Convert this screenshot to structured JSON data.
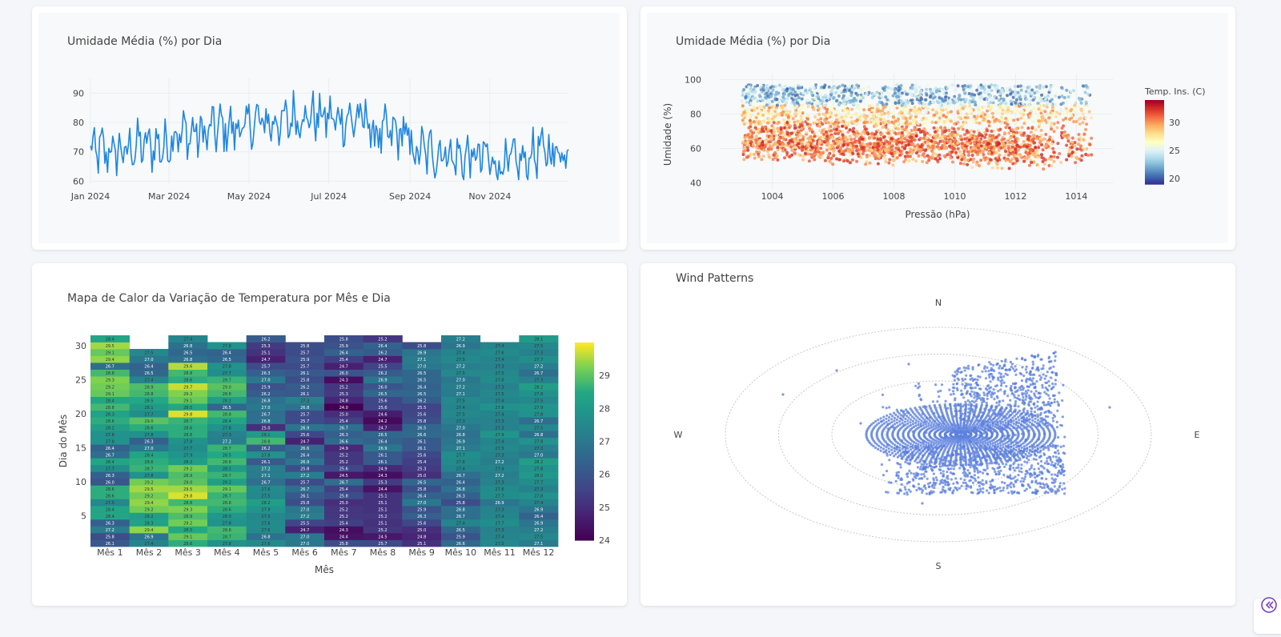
{
  "panels": {
    "tl_title": "Umidade Média (%) por Dia",
    "tr_title": "Umidade Média (%) por Dia",
    "bl_title": "Mapa de Calor da Variação de Temperatura por Mês e Dia",
    "br_title": "Wind Patterns"
  },
  "colors": {
    "line": "#1f86e0",
    "scatter_wind": "#5b7fdc",
    "grid": "#e8eef4"
  },
  "collapse_icon": "double-chevron-left-icon",
  "chart_data": [
    {
      "type": "line",
      "title": "Umidade Média (%) por Dia",
      "xlabel": "",
      "ylabel": "",
      "x_start": "2024-01-01",
      "x_end": "2024-12-31",
      "x_tick_labels": [
        "Jan 2024",
        "Mar 2024",
        "May 2024",
        "Jul 2024",
        "Sep 2024",
        "Nov 2024"
      ],
      "x_tick_dates": [
        "2024-01-01",
        "2024-03-01",
        "2024-05-01",
        "2024-07-01",
        "2024-09-01",
        "2024-11-01"
      ],
      "y_ticks": [
        60,
        70,
        80,
        90
      ],
      "ylim": [
        59,
        95
      ],
      "monthly_levels": [
        70,
        72,
        76,
        78,
        80,
        82,
        81,
        76,
        70,
        68,
        66,
        70
      ],
      "series": [
        {
          "values": []
        }
      ]
    },
    {
      "type": "scatter",
      "title": "Umidade Média (%) por Dia",
      "xlabel": "Pressão (hPa)",
      "ylabel": "Umidade (%)",
      "x_ticks": [
        1004,
        1006,
        1008,
        1010,
        1012,
        1014
      ],
      "y_ticks": [
        40,
        60,
        80,
        100
      ],
      "xlim": [
        1002.3,
        1015.2
      ],
      "ylim": [
        36.5,
        103.5
      ],
      "colorbar": {
        "title": "Temp. Ins. (C)",
        "ticks": [
          20,
          25,
          30
        ],
        "range": [
          19,
          34
        ],
        "colorscale": "RdYlBu reversed"
      }
    },
    {
      "type": "heatmap",
      "title": "Mapa de Calor da Variação de Temperatura por Mês e Dia",
      "xlabel": "Mês",
      "ylabel": "Dia do Mês",
      "categories": [
        "Mês 1",
        "Mês 2",
        "Mês 3",
        "Mês 4",
        "Mês 5",
        "Mês 6",
        "Mês 7",
        "Mês 8",
        "Mês 9",
        "Mês 10",
        "Mês 11",
        "Mês 12"
      ],
      "y_ticks": [
        5,
        10,
        15,
        20,
        25,
        30
      ],
      "days": 31,
      "colorbar": {
        "ticks": [
          24,
          25,
          26,
          27,
          28,
          29
        ],
        "range": [
          24,
          30
        ],
        "colorscale": "Viridis"
      },
      "columns": [
        {
          "month": 1,
          "days": 31,
          "values": [
            26.1,
            25.8,
            27.2,
            26.3,
            28.4,
            28.4,
            27.5,
            28.6,
            28.6,
            26.0,
            26.3,
            27.7,
            28.4,
            26.7,
            26.4,
            27.8,
            27.8,
            28.2,
            28.6,
            28.3,
            28.8,
            28.4,
            29.1,
            29.2,
            29.3,
            28.8,
            26.7,
            29.4,
            29.1,
            29.5,
            28.4
          ]
        },
        {
          "month": 2,
          "days": 29,
          "values": [
            27.4,
            26.9,
            29.4,
            28.3,
            28.2,
            29.2,
            29.4,
            29.2,
            29.5,
            29.2,
            27.8,
            28.7,
            28.6,
            28.4,
            27.0,
            26.3,
            27.8,
            28.6,
            29.0,
            27.7,
            28.1,
            28.5,
            28.8,
            28.9,
            27.4,
            26.5,
            26.4,
            27.0,
            27.5
          ]
        },
        {
          "month": 3,
          "days": 31,
          "values": [
            28.6,
            29.1,
            28.5,
            29.2,
            28.9,
            29.3,
            28.8,
            29.8,
            29.5,
            29.0,
            28.9,
            29.2,
            28.2,
            27.9,
            27.7,
            27.8,
            28.6,
            28.6,
            28.7,
            29.8,
            28.5,
            29.1,
            29.3,
            29.7,
            28.6,
            28.8,
            29.6,
            26.8,
            26.5,
            26.8,
            27.4
          ]
        },
        {
          "month": 4,
          "days": 30,
          "values": [
            27.8,
            28.7,
            28.8,
            27.8,
            28.0,
            28.6,
            28.8,
            28.7,
            29.1,
            28.2,
            28.7,
            28.1,
            28.8,
            28.5,
            28.7,
            27.2,
            27.3,
            27.8,
            28.4,
            28.8,
            26.5,
            28.2,
            28.8,
            29.0,
            28.7,
            27.7,
            27.8,
            26.5,
            26.4,
            27.8
          ]
        },
        {
          "month": 5,
          "days": 31,
          "values": [
            27.6,
            26.8,
            27.6,
            27.6,
            27.5,
            27.9,
            28.2,
            27.5,
            27.6,
            26.7,
            27.1,
            27.2,
            26.1,
            27.8,
            26.2,
            28.8,
            28.1,
            25.0,
            26.8,
            26.7,
            27.0,
            26.8,
            26.2,
            25.9,
            27.0,
            26.3,
            25.7,
            24.7,
            25.1,
            25.3,
            26.2
          ]
        },
        {
          "month": 6,
          "days": 30,
          "values": [
            27.0,
            27.0,
            24.7,
            25.5,
            27.2,
            27.0,
            25.8,
            26.1,
            26.7,
            25.7,
            27.2,
            25.8,
            26.9,
            26.4,
            26.6,
            24.7,
            25.6,
            26.9,
            25.7,
            25.7,
            26.8,
            27.3,
            26.1,
            26.2,
            25.8,
            26.1,
            25.7,
            25.9,
            25.7,
            25.8
          ]
        },
        {
          "month": 7,
          "days": 31,
          "values": [
            25.8,
            24.4,
            24.3,
            25.4,
            25.2,
            25.2,
            25.0,
            25.8,
            25.4,
            26.7,
            24.5,
            25.6,
            25.2,
            25.2,
            24.9,
            26.6,
            26.3,
            26.7,
            25.4,
            25.0,
            24.0,
            24.8,
            25.3,
            25.2,
            24.3,
            26.0,
            24.7,
            25.4,
            26.4,
            25.9,
            25.8
          ]
        },
        {
          "month": 8,
          "days": 31,
          "values": [
            25.7,
            24.5,
            25.2,
            25.1,
            25.2,
            25.1,
            25.1,
            25.1,
            24.4,
            25.3,
            24.3,
            24.9,
            26.1,
            26.1,
            26.9,
            26.4,
            26.5,
            24.7,
            24.2,
            24.6,
            25.6,
            25.6,
            26.5,
            26.0,
            26.9,
            26.2,
            25.5,
            24.7,
            26.2,
            26.4,
            25.2
          ]
        },
        {
          "month": 9,
          "days": 30,
          "values": [
            25.1,
            24.8,
            25.0,
            25.6,
            26.3,
            25.9,
            27.0,
            26.4,
            25.8,
            26.5,
            25.0,
            25.3,
            25.4,
            25.6,
            26.1,
            26.1,
            26.6,
            26.5,
            25.8,
            25.6,
            25.5,
            26.2,
            26.5,
            26.4,
            26.5,
            26.5,
            27.0,
            27.1,
            26.9,
            25.8
          ]
        },
        {
          "month": 10,
          "days": 31,
          "values": [
            26.6,
            25.9,
            26.5,
            27.4,
            26.7,
            26.8,
            25.8,
            26.3,
            26.8,
            26.4,
            26.7,
            27.4,
            27.6,
            27.7,
            27.1,
            26.9,
            26.8,
            27.0,
            27.3,
            27.5,
            27.4,
            27.5,
            27.1,
            27.2,
            27.0,
            27.5,
            27.2,
            27.5,
            27.4,
            26.9,
            27.2
          ]
        },
        {
          "month": 11,
          "days": 30,
          "values": [
            27.5,
            27.4,
            27.3,
            27.7,
            27.4,
            27.3,
            26.9,
            27.7,
            27.6,
            27.3,
            27.2,
            27.4,
            27.2,
            27.3,
            27.5,
            27.4,
            27.9,
            27.3,
            27.3,
            27.4,
            27.8,
            27.4,
            27.5,
            27.3,
            27.6,
            27.5,
            27.3,
            27.4,
            27.6,
            27.4
          ]
        },
        {
          "month": 12,
          "days": 31,
          "values": [
            27.1,
            27.5,
            27.2,
            26.9,
            26.4,
            26.9,
            27.4,
            27.8,
            27.3,
            27.7,
            28.0,
            27.8,
            28.2,
            27.0,
            27.3,
            27.8,
            26.8,
            27.5,
            26.7,
            27.8,
            27.9,
            27.5,
            27.8,
            28.2,
            27.3,
            26.7,
            27.2,
            27.7,
            27.3,
            27.5,
            28.1
          ]
        }
      ]
    },
    {
      "type": "scatter",
      "title": "Wind Patterns",
      "compass_labels": [
        "N",
        "E",
        "S",
        "W"
      ],
      "radial_rings": 4
    }
  ]
}
